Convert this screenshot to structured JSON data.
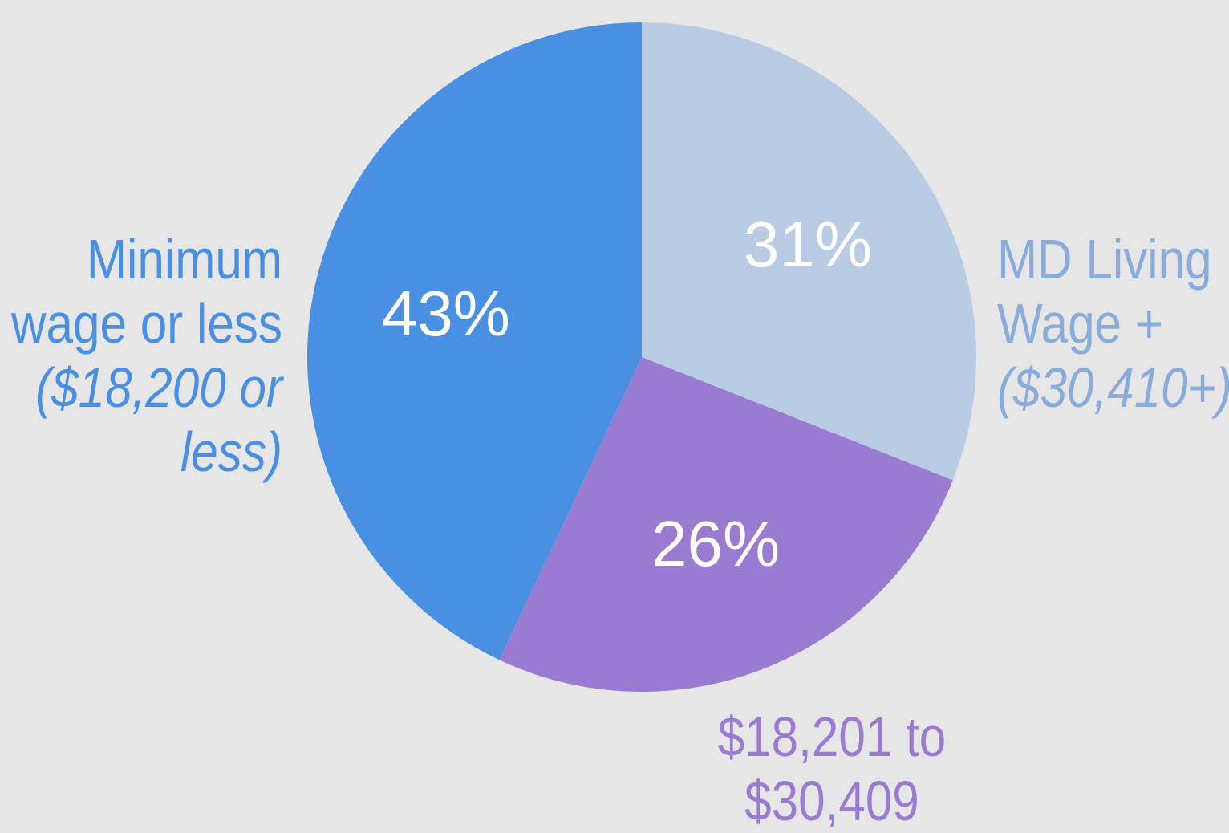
{
  "chart_data": {
    "type": "pie",
    "categories": [
      "MD Living Wage +",
      "$18,201 to $30,409",
      "Minimum wage or less"
    ],
    "category_notes": [
      "($30,410+)",
      null,
      "($18,200 or less)"
    ],
    "values": [
      31,
      26,
      43
    ],
    "value_labels": [
      "31%",
      "26%",
      "43%"
    ],
    "colors": [
      "#b9cce3",
      "#9a7bd2",
      "#4a90e2"
    ],
    "label_colors": [
      "#8aacdc",
      "#9a7bd2",
      "#4a90e2"
    ],
    "start_angle": 0,
    "direction": "clockwise"
  }
}
